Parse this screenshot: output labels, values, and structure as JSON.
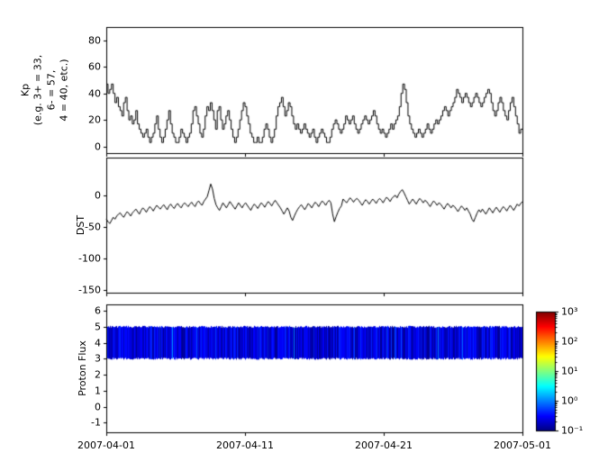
{
  "figure": {
    "background": "#ffffff",
    "x_axis": {
      "start": "2007-04-01",
      "end": "2007-05-01",
      "span_days": 30,
      "tick_labels": [
        "2007-04-01",
        "2007-04-11",
        "2007-04-21",
        "2007-05-01"
      ]
    }
  },
  "chart_data": [
    {
      "type": "line",
      "name": "kp-index",
      "style": "step",
      "ylabel": "Kp\n(e.g. 3+ = 33,\n6- = 57,\n4 = 40, etc.)",
      "ylim": [
        -5,
        90
      ],
      "yticks": [
        0,
        20,
        40,
        60,
        80
      ],
      "line_color": "#000000",
      "samples_per_day": 8,
      "values": [
        47,
        40,
        43,
        47,
        40,
        33,
        37,
        30,
        27,
        23,
        33,
        37,
        27,
        20,
        23,
        17,
        20,
        27,
        17,
        13,
        10,
        7,
        10,
        13,
        7,
        3,
        7,
        10,
        17,
        23,
        13,
        7,
        3,
        7,
        13,
        20,
        27,
        17,
        10,
        7,
        3,
        3,
        7,
        13,
        10,
        7,
        3,
        7,
        10,
        17,
        27,
        30,
        23,
        17,
        10,
        7,
        13,
        23,
        30,
        27,
        33,
        27,
        20,
        13,
        27,
        30,
        20,
        13,
        17,
        23,
        27,
        20,
        13,
        7,
        3,
        7,
        13,
        20,
        27,
        33,
        30,
        23,
        17,
        10,
        7,
        3,
        3,
        7,
        3,
        3,
        7,
        13,
        17,
        13,
        7,
        3,
        7,
        13,
        23,
        30,
        33,
        37,
        30,
        23,
        27,
        33,
        30,
        23,
        17,
        13,
        17,
        13,
        10,
        13,
        17,
        13,
        10,
        7,
        10,
        13,
        7,
        3,
        7,
        10,
        13,
        10,
        7,
        3,
        3,
        7,
        13,
        17,
        20,
        17,
        13,
        10,
        13,
        17,
        23,
        20,
        17,
        20,
        23,
        17,
        13,
        10,
        13,
        17,
        20,
        23,
        20,
        17,
        20,
        23,
        27,
        23,
        17,
        13,
        10,
        13,
        10,
        7,
        10,
        13,
        17,
        13,
        17,
        20,
        23,
        30,
        40,
        47,
        43,
        33,
        23,
        17,
        13,
        10,
        7,
        10,
        13,
        10,
        7,
        10,
        13,
        17,
        13,
        10,
        13,
        17,
        20,
        17,
        20,
        23,
        27,
        30,
        27,
        23,
        27,
        30,
        33,
        37,
        43,
        40,
        37,
        33,
        37,
        40,
        37,
        33,
        30,
        33,
        37,
        40,
        37,
        33,
        30,
        33,
        37,
        40,
        43,
        40,
        33,
        27,
        23,
        27,
        33,
        37,
        33,
        27,
        23,
        20,
        27,
        33,
        37,
        30,
        23,
        17,
        10,
        13
      ]
    },
    {
      "type": "line",
      "name": "dst-index",
      "ylabel": "DST",
      "ylim": [
        -155,
        60
      ],
      "yticks": [
        0,
        -50,
        -100,
        -150
      ],
      "line_color": "#000000",
      "samples_per_day": 8,
      "values": [
        -38,
        -42,
        -45,
        -40,
        -35,
        -38,
        -33,
        -30,
        -28,
        -32,
        -35,
        -30,
        -26,
        -29,
        -33,
        -28,
        -25,
        -22,
        -26,
        -30,
        -24,
        -20,
        -23,
        -27,
        -22,
        -18,
        -21,
        -25,
        -20,
        -16,
        -19,
        -22,
        -18,
        -15,
        -19,
        -23,
        -17,
        -14,
        -18,
        -21,
        -16,
        -13,
        -17,
        -20,
        -15,
        -12,
        -15,
        -18,
        -14,
        -11,
        -15,
        -18,
        -12,
        -9,
        -13,
        -16,
        -10,
        -6,
        -2,
        8,
        18,
        10,
        -5,
        -15,
        -20,
        -24,
        -18,
        -12,
        -16,
        -20,
        -15,
        -10,
        -14,
        -18,
        -22,
        -17,
        -12,
        -16,
        -20,
        -15,
        -12,
        -16,
        -20,
        -24,
        -18,
        -14,
        -17,
        -21,
        -16,
        -12,
        -15,
        -19,
        -14,
        -10,
        -13,
        -17,
        -12,
        -8,
        -12,
        -16,
        -20,
        -25,
        -30,
        -25,
        -20,
        -25,
        -35,
        -40,
        -33,
        -27,
        -22,
        -18,
        -15,
        -19,
        -23,
        -18,
        -13,
        -16,
        -20,
        -15,
        -11,
        -14,
        -18,
        -13,
        -9,
        -12,
        -16,
        -11,
        -8,
        -12,
        -30,
        -42,
        -34,
        -27,
        -21,
        -17,
        -6,
        -9,
        -12,
        -8,
        -4,
        -7,
        -11,
        -7,
        -5,
        -8,
        -12,
        -16,
        -11,
        -7,
        -10,
        -14,
        -10,
        -6,
        -9,
        -13,
        -8,
        -5,
        -8,
        -12,
        -7,
        -3,
        -6,
        -10,
        -5,
        -2,
        0,
        -4,
        2,
        6,
        9,
        4,
        -2,
        -8,
        -14,
        -10,
        -6,
        -10,
        -14,
        -9,
        -5,
        -8,
        -12,
        -8,
        -10,
        -14,
        -18,
        -13,
        -9,
        -12,
        -16,
        -12,
        -14,
        -18,
        -22,
        -17,
        -13,
        -16,
        -20,
        -16,
        -18,
        -22,
        -26,
        -21,
        -17,
        -20,
        -24,
        -20,
        -25,
        -30,
        -38,
        -42,
        -35,
        -28,
        -23,
        -27,
        -22,
        -26,
        -30,
        -25,
        -20,
        -24,
        -28,
        -23,
        -19,
        -23,
        -27,
        -22,
        -18,
        -21,
        -25,
        -20,
        -16,
        -20,
        -24,
        -19,
        -14,
        -17,
        -13,
        -10
      ]
    },
    {
      "type": "heatmap",
      "name": "proton-flux-spectrogram",
      "ylabel": "Proton Flux",
      "ylim": [
        -1.6,
        6.4
      ],
      "yticks": [
        -1,
        0,
        1,
        2,
        3,
        4,
        5,
        6
      ],
      "band": {
        "ymin": 3,
        "ymax": 5,
        "log10_flux_range": [
          -0.95,
          -0.35
        ]
      },
      "noise_seed": 7,
      "colorbar": {
        "scale": "log",
        "vmin": 0.1,
        "vmax": 1000,
        "tick_labels": [
          "10³",
          "10²",
          "10¹",
          "10⁰",
          "10⁻¹"
        ],
        "colormap": "jet",
        "colormap_stops": [
          "#00007f",
          "#0000ff",
          "#00ffff",
          "#ffff00",
          "#ff0000",
          "#7f0000"
        ]
      }
    }
  ]
}
